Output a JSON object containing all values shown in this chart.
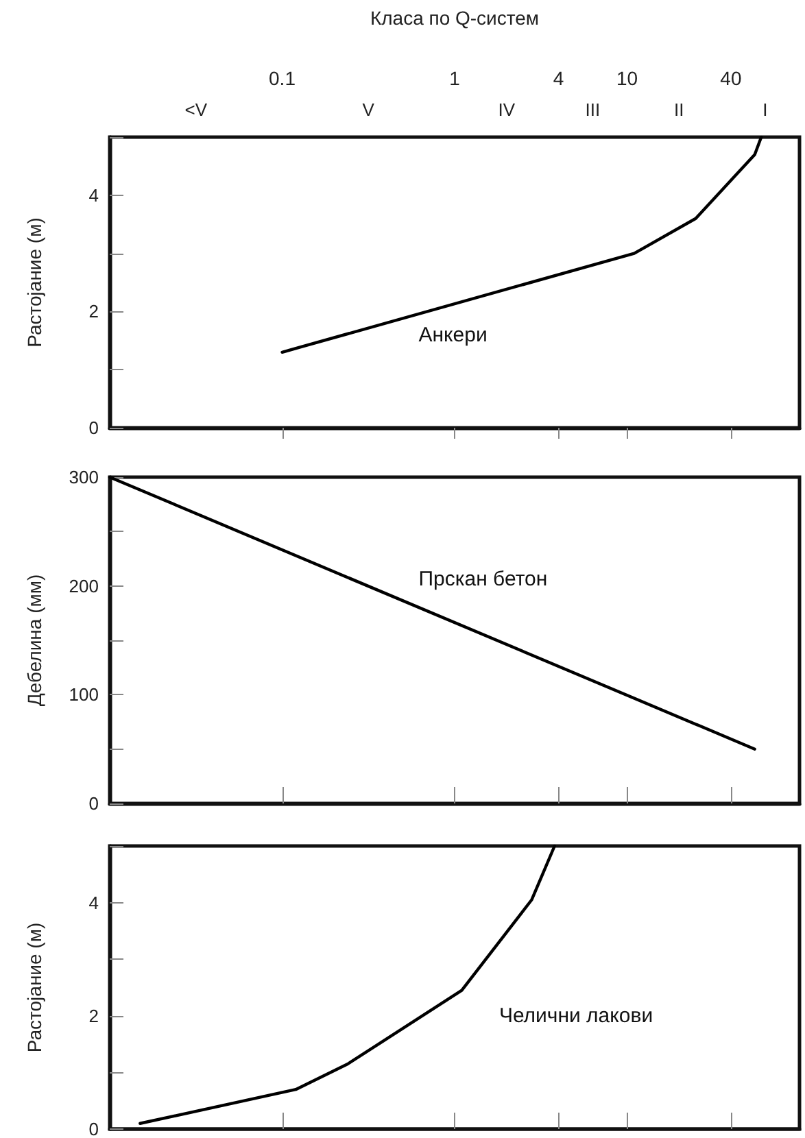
{
  "chart_data": [
    {
      "type": "line",
      "xlabel": "Класа по Q-систем",
      "ylabel": "Растојание (м)",
      "log": "x",
      "grid": false,
      "marker": "none",
      "line_style": "solid",
      "xlim": [
        0.01,
        100
      ],
      "xticks": [
        0.1,
        1,
        4,
        10,
        40
      ],
      "ylim": [
        0,
        5
      ],
      "yticks": [
        0,
        {
          "value": 1,
          "label": null
        },
        2,
        {
          "value": 3,
          "label": null
        },
        4
      ],
      "x": [
        0.1,
        11,
        25,
        55,
        60
      ],
      "values": [
        1.3,
        3.0,
        3.6,
        4.7,
        5.0
      ],
      "color": "#000000",
      "annotations": [
        "Анкери",
        "<V",
        "V",
        "IV",
        "III",
        "II",
        "I"
      ]
    },
    {
      "type": "line",
      "ylabel": "Дебелина (мм)",
      "log": "x",
      "grid": false,
      "marker": "none",
      "line_style": "solid",
      "tick_labels": "y",
      "xlim": [
        0.01,
        100
      ],
      "xticks": [
        0.1,
        1,
        4,
        10,
        40
      ],
      "ylim": [
        0,
        300
      ],
      "yticks": [
        0,
        {
          "value": 50,
          "label": null
        },
        100,
        {
          "value": 150,
          "label": null
        },
        200,
        {
          "value": 250,
          "label": null
        },
        300
      ],
      "x": [
        0.01,
        55
      ],
      "values": [
        300,
        50
      ],
      "color": "#000000",
      "annotations": [
        "Прскан бетон"
      ]
    },
    {
      "type": "line",
      "ylabel": "Растојание (м)",
      "log": "x",
      "grid": false,
      "marker": "none",
      "line_style": "solid",
      "tick_labels": "y",
      "xlim": [
        0.01,
        100
      ],
      "xticks": [
        0.1,
        1,
        4,
        10,
        40
      ],
      "ylim": [
        0,
        5
      ],
      "yticks": [
        0,
        {
          "value": 1,
          "label": null
        },
        2,
        {
          "value": 3,
          "label": null
        },
        4
      ],
      "x": [
        0.015,
        0.12,
        0.24,
        1.1,
        2.8,
        3.8
      ],
      "values": [
        0.1,
        0.7,
        1.15,
        2.45,
        4.05,
        5.0
      ],
      "color": "#000000",
      "annotations": [
        "Челични лакови"
      ]
    }
  ]
}
